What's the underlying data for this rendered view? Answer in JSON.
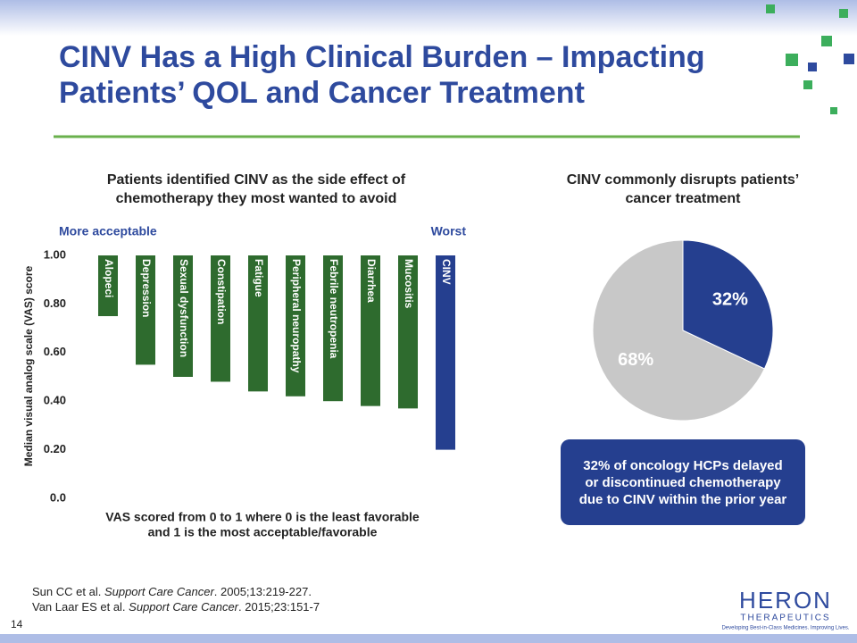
{
  "title_lines": [
    "CINV Has a High Clinical Burden – Impacting",
    "Patients’ QOL and Cancer Treatment"
  ],
  "chart_data": [
    {
      "type": "bar",
      "title_lines": [
        "Patients identified CINV as the side effect of",
        "chemotherapy they most wanted to avoid"
      ],
      "left_note": "More acceptable",
      "right_note": "Worst",
      "y_label": "Median visual analog scale (VAS) score",
      "caption_lines": [
        "VAS scored from 0 to 1 where 0 is the least favorable",
        "and 1 is the most acceptable/favorable"
      ],
      "categories": [
        "Alopeci",
        "Depression",
        "Sexual dysfunction",
        "Constipation",
        "Fatigue",
        "Peripheral neuropathy",
        "Febrile neutropenia",
        "Diarrhea",
        "Mucositis",
        "CINV"
      ],
      "values": [
        0.75,
        0.55,
        0.5,
        0.48,
        0.44,
        0.42,
        0.4,
        0.38,
        0.37,
        0.2
      ],
      "colors": [
        "#2e6b2e",
        "#2e6b2e",
        "#2e6b2e",
        "#2e6b2e",
        "#2e6b2e",
        "#2e6b2e",
        "#2e6b2e",
        "#2e6b2e",
        "#2e6b2e",
        "#253f8f"
      ],
      "ylim": [
        0,
        1
      ],
      "yticks": [
        {
          "value": 0,
          "label": "0.0"
        },
        {
          "value": 0.2,
          "label": "0.20"
        },
        {
          "value": 0.4,
          "label": "0.40"
        },
        {
          "value": 0.6,
          "label": "0.60"
        },
        {
          "value": 0.8,
          "label": "0.80"
        },
        {
          "value": 1,
          "label": "1.00"
        }
      ]
    },
    {
      "type": "pie",
      "title_lines": [
        "CINV commonly disrupts patients’",
        "cancer treatment"
      ],
      "values": [
        32,
        68
      ],
      "value_labels": [
        "32%",
        "68%"
      ],
      "colors": [
        "#253f8f",
        "#c8c8c8"
      ],
      "callout_lines": [
        "32% of oncology HCPs delayed",
        "or discontinued chemotherapy",
        "due to CINV within the prior year"
      ]
    }
  ],
  "references": [
    {
      "authors": "Sun CC et al. ",
      "journal": "Support Care Cancer",
      "details": ". 2005;13:219-227."
    },
    {
      "authors": "Van Laar ES et al. ",
      "journal": "Support Care Cancer",
      "details": ". 2015;23:151-7"
    }
  ],
  "page_number": "14",
  "logo": {
    "name": "HERON",
    "sub": "THERAPEUTICS",
    "tagline": "Developing Best-in-Class Medicines. Improving Lives."
  }
}
